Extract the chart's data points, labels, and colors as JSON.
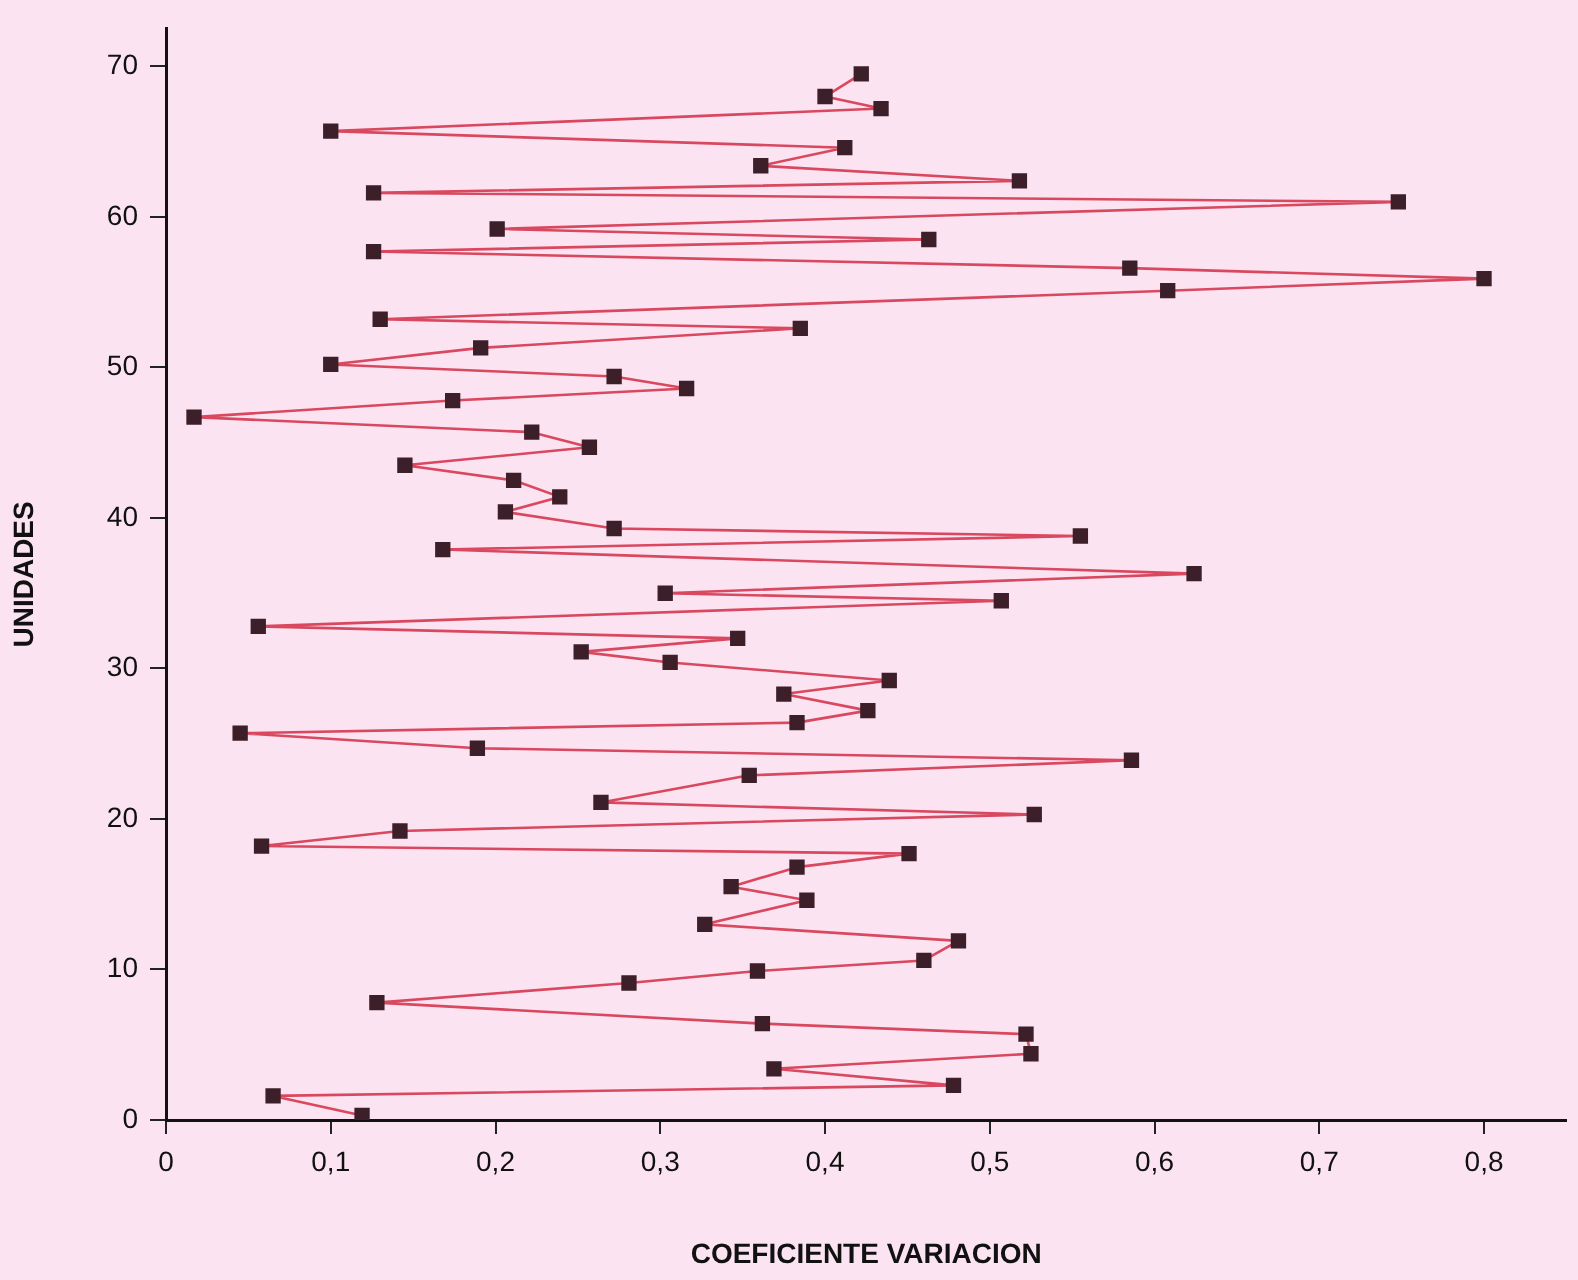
{
  "chart_data": {
    "type": "line",
    "xlabel": "COEFICIENTE VARIACION",
    "ylabel": "UNIDADES",
    "marker": "square",
    "line_style": "solid",
    "grid": false,
    "legend": false,
    "xlim": [
      0,
      0.85
    ],
    "ylim": [
      0,
      72.5
    ],
    "xticks": [
      0,
      {
        "value": 0.1,
        "label": "0,1"
      },
      {
        "value": 0.2,
        "label": "0,2"
      },
      {
        "value": 0.3,
        "label": "0,3"
      },
      {
        "value": 0.4,
        "label": "0,4"
      },
      {
        "value": 0.5,
        "label": "0,5"
      },
      {
        "value": 0.6,
        "label": "0,6"
      },
      {
        "value": 0.7,
        "label": "0,7"
      },
      {
        "value": 0.8,
        "label": "0,8"
      }
    ],
    "yticks": [
      0,
      10,
      20,
      30,
      40,
      50,
      60,
      70
    ],
    "series": [
      {
        "color": "#d9485f",
        "x": [
          0.119,
          0.065,
          0.478,
          0.369,
          0.525,
          0.522,
          0.362,
          0.128,
          0.281,
          0.359,
          0.46,
          0.481,
          0.327,
          0.389,
          0.343,
          0.383,
          0.451,
          0.058,
          0.142,
          0.527,
          0.264,
          0.354,
          0.586,
          0.189,
          0.045,
          0.383,
          0.426,
          0.375,
          0.439,
          0.306,
          0.252,
          0.347,
          0.056,
          0.507,
          0.303,
          0.624,
          0.168,
          0.555,
          0.272,
          0.206,
          0.239,
          0.211,
          0.145,
          0.257,
          0.222,
          0.017,
          0.174,
          0.316,
          0.272,
          0.1,
          0.191,
          0.385,
          0.13,
          0.608,
          0.8,
          0.585,
          0.126,
          0.463,
          0.201,
          0.748,
          0.126,
          0.518,
          0.361,
          0.412,
          0.1,
          0.434,
          0.4,
          0.422
        ],
        "values": [
          0.3,
          1.6,
          2.3,
          3.4,
          4.4,
          5.7,
          6.4,
          7.8,
          9.1,
          9.9,
          10.6,
          11.9,
          13.0,
          14.6,
          15.5,
          16.8,
          17.7,
          18.2,
          19.2,
          20.3,
          21.1,
          22.9,
          23.9,
          24.7,
          25.7,
          26.4,
          27.2,
          28.3,
          29.2,
          30.4,
          31.1,
          32.0,
          32.8,
          34.5,
          35.0,
          36.3,
          37.9,
          38.8,
          39.3,
          40.4,
          41.4,
          42.5,
          43.5,
          44.7,
          45.7,
          46.7,
          47.8,
          48.6,
          49.4,
          50.2,
          51.3,
          52.6,
          53.2,
          55.1,
          55.9,
          56.6,
          57.7,
          58.5,
          59.2,
          61.0,
          61.6,
          62.4,
          63.4,
          64.6,
          65.7,
          67.2,
          68.0,
          69.5
        ]
      }
    ]
  }
}
